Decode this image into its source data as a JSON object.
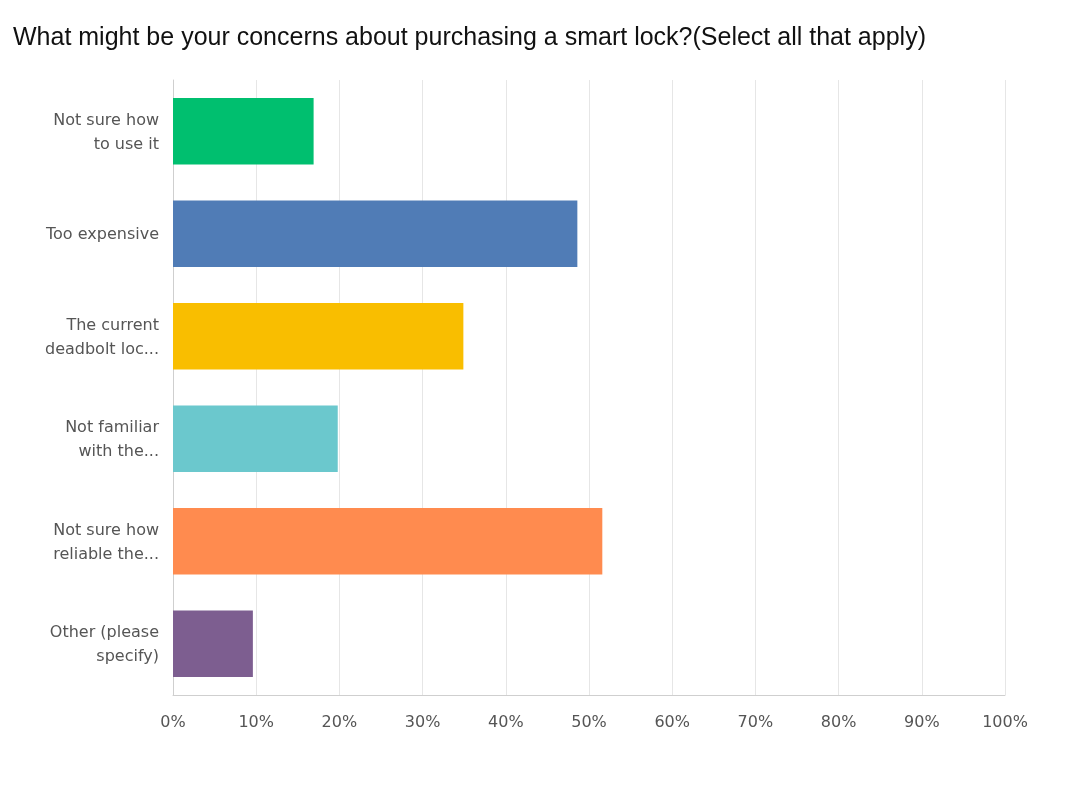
{
  "chart_data": {
    "type": "bar",
    "orientation": "horizontal",
    "title": "What might be your concerns about purchasing a smart lock?(Select all that apply)",
    "categories": [
      "Not sure how\nto use it",
      "Too expensive",
      "The current\ndeadbolt loc...",
      "Not familiar\nwith the...",
      "Not sure how\nreliable the...",
      "Other (please\nspecify)"
    ],
    "values": [
      16.9,
      48.6,
      34.9,
      19.8,
      51.6,
      9.6
    ],
    "colors": [
      "#00bf6f",
      "#507cb6",
      "#f9be00",
      "#6bc8cd",
      "#ff8b4f",
      "#7d5e90"
    ],
    "xlim": [
      0,
      100
    ],
    "xticks": [
      {
        "value": 0,
        "label": "0%"
      },
      {
        "value": 10,
        "label": "10%"
      },
      {
        "value": 20,
        "label": "20%"
      },
      {
        "value": 30,
        "label": "30%"
      },
      {
        "value": 40,
        "label": "40%"
      },
      {
        "value": 50,
        "label": "50%"
      },
      {
        "value": 60,
        "label": "60%"
      },
      {
        "value": 70,
        "label": "70%"
      },
      {
        "value": 80,
        "label": "80%"
      },
      {
        "value": 90,
        "label": "90%"
      },
      {
        "value": 100,
        "label": "100%"
      }
    ],
    "grid": "x"
  }
}
